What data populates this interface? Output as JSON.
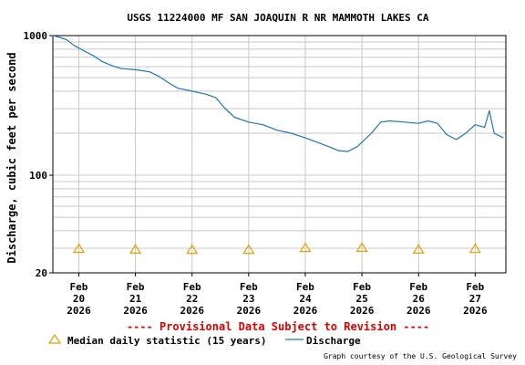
{
  "chart_data": {
    "type": "line",
    "title": "USGS 11224000 MF SAN JOAQUIN R NR MAMMOTH LAKES CA",
    "ylabel": "Discharge, cubic feet per second",
    "xlabel": "",
    "y_scale": "log",
    "ylim": [
      20,
      1000
    ],
    "y_ticks": [
      {
        "value": 20,
        "label": "20"
      },
      {
        "value": 100,
        "label": "100"
      },
      {
        "value": 1000,
        "label": "1000"
      }
    ],
    "x_ticks": [
      {
        "value": "2026-02-20",
        "line1": "Feb",
        "line2": "20",
        "line3": "2026"
      },
      {
        "value": "2026-02-21",
        "line1": "Feb",
        "line2": "21",
        "line3": "2026"
      },
      {
        "value": "2026-02-22",
        "line1": "Feb",
        "line2": "22",
        "line3": "2026"
      },
      {
        "value": "2026-02-23",
        "line1": "Feb",
        "line2": "23",
        "line3": "2026"
      },
      {
        "value": "2026-02-24",
        "line1": "Feb",
        "line2": "24",
        "line3": "2026"
      },
      {
        "value": "2026-02-25",
        "line1": "Feb",
        "line2": "25",
        "line3": "2026"
      },
      {
        "value": "2026-02-26",
        "line1": "Feb",
        "line2": "26",
        "line3": "2026"
      },
      {
        "value": "2026-02-27",
        "line1": "Feb",
        "line2": "27",
        "line3": "2026"
      }
    ],
    "xlim": [
      "2026-02-19T13:00",
      "2026-02-27T13:00"
    ],
    "grid": true,
    "legend_position": "bottom",
    "series": [
      {
        "name": "Discharge",
        "color": "#1f77b4",
        "points": [
          [
            "2026-02-19T13:00",
            1000
          ],
          [
            "2026-02-19T16:00",
            970
          ],
          [
            "2026-02-19T19:00",
            930
          ],
          [
            "2026-02-19T22:00",
            850
          ],
          [
            "2026-02-20T02:00",
            780
          ],
          [
            "2026-02-20T06:00",
            720
          ],
          [
            "2026-02-20T10:00",
            650
          ],
          [
            "2026-02-20T14:00",
            610
          ],
          [
            "2026-02-20T18:00",
            580
          ],
          [
            "2026-02-21T00:00",
            570
          ],
          [
            "2026-02-21T06:00",
            550
          ],
          [
            "2026-02-21T10:00",
            510
          ],
          [
            "2026-02-21T14:00",
            460
          ],
          [
            "2026-02-21T18:00",
            420
          ],
          [
            "2026-02-22T00:00",
            400
          ],
          [
            "2026-02-22T06:00",
            380
          ],
          [
            "2026-02-22T10:00",
            360
          ],
          [
            "2026-02-22T14:00",
            300
          ],
          [
            "2026-02-22T18:00",
            260
          ],
          [
            "2026-02-23T00:00",
            240
          ],
          [
            "2026-02-23T06:00",
            230
          ],
          [
            "2026-02-23T12:00",
            210
          ],
          [
            "2026-02-23T18:00",
            200
          ],
          [
            "2026-02-24T00:00",
            185
          ],
          [
            "2026-02-24T06:00",
            170
          ],
          [
            "2026-02-24T10:00",
            160
          ],
          [
            "2026-02-24T14:00",
            150
          ],
          [
            "2026-02-24T18:00",
            148
          ],
          [
            "2026-02-24T22:00",
            160
          ],
          [
            "2026-02-25T04:00",
            200
          ],
          [
            "2026-02-25T08:00",
            240
          ],
          [
            "2026-02-25T12:00",
            245
          ],
          [
            "2026-02-25T18:00",
            240
          ],
          [
            "2026-02-26T00:00",
            235
          ],
          [
            "2026-02-26T04:00",
            245
          ],
          [
            "2026-02-26T08:00",
            235
          ],
          [
            "2026-02-26T12:00",
            195
          ],
          [
            "2026-02-26T16:00",
            180
          ],
          [
            "2026-02-26T20:00",
            200
          ],
          [
            "2026-02-27T00:00",
            230
          ],
          [
            "2026-02-27T04:00",
            220
          ],
          [
            "2026-02-27T06:00",
            290
          ],
          [
            "2026-02-27T08:00",
            200
          ],
          [
            "2026-02-27T12:00",
            185
          ]
        ]
      }
    ],
    "median_series": {
      "name": "Median daily statistic (15 years)",
      "color": "#e69f00",
      "points": [
        [
          "2026-02-20",
          29.8
        ],
        [
          "2026-02-21",
          29.4
        ],
        [
          "2026-02-22",
          29.3
        ],
        [
          "2026-02-23",
          29.3
        ],
        [
          "2026-02-24",
          30.2
        ],
        [
          "2026-02-25",
          30.3
        ],
        [
          "2026-02-26",
          29.4
        ],
        [
          "2026-02-27",
          29.7
        ]
      ]
    },
    "annotations": {
      "provisional": "---- Provisional Data Subject to Revision ----",
      "credit": "Graph courtesy of the U.S. Geological Survey"
    }
  },
  "legend": {
    "median_label": "Median daily statistic (15 years)",
    "discharge_label": "Discharge"
  }
}
